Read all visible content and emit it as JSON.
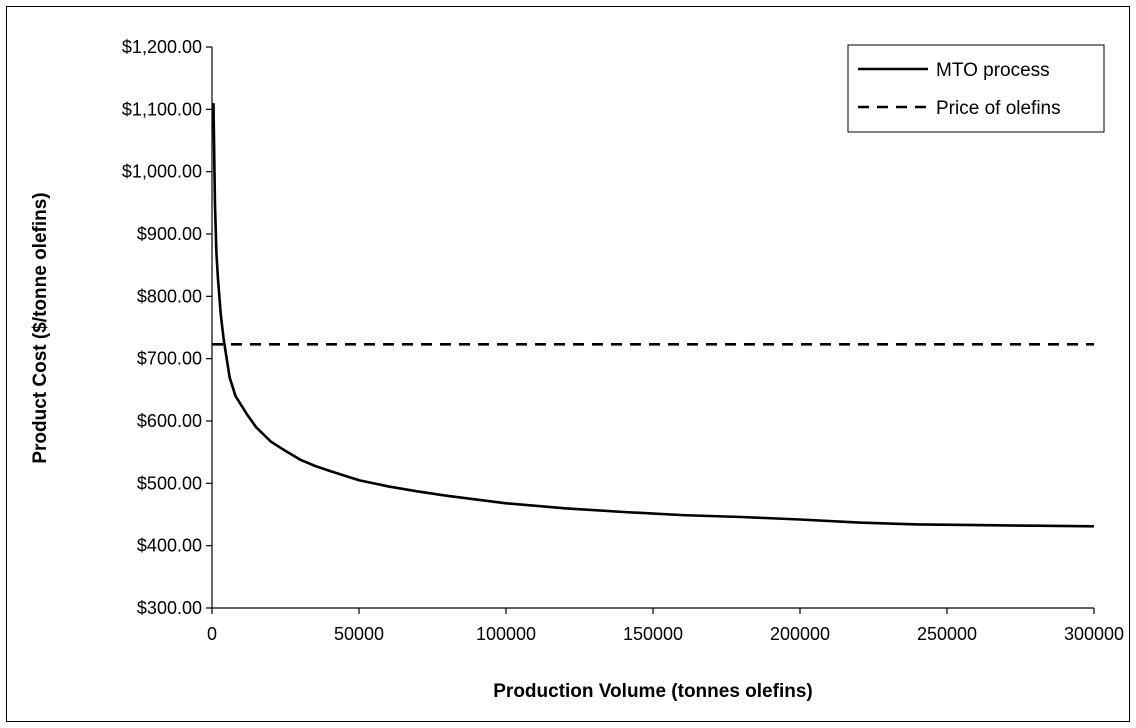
{
  "chart_data": {
    "type": "line",
    "title": "",
    "xlabel": "Production Volume (tonnes olefins)",
    "ylabel": "Product Cost ($/tonne olefins)",
    "xlim": [
      0,
      300000
    ],
    "ylim": [
      300,
      1200
    ],
    "x_ticks": [
      0,
      50000,
      100000,
      150000,
      200000,
      250000,
      300000
    ],
    "x_tick_labels": [
      "0",
      "50000",
      "100000",
      "150000",
      "200000",
      "250000",
      "300000"
    ],
    "y_ticks": [
      300,
      400,
      500,
      600,
      700,
      800,
      900,
      1000,
      1100,
      1200
    ],
    "y_tick_labels": [
      "$300.00",
      "$400.00",
      "$500.00",
      "$600.00",
      "$700.00",
      "$800.00",
      "$900.00",
      "$1,000.00",
      "$1,100.00",
      "$1,200.00"
    ],
    "grid": false,
    "legend_position": "top-right",
    "series": [
      {
        "name": "MTO process",
        "style": "solid",
        "color": "#000000",
        "x": [
          500,
          1000,
          1500,
          2000,
          2500,
          3000,
          4000,
          5000,
          6000,
          8000,
          10000,
          12000,
          15000,
          20000,
          25000,
          30000,
          35000,
          40000,
          50000,
          60000,
          70000,
          80000,
          90000,
          100000,
          120000,
          140000,
          160000,
          180000,
          200000,
          220000,
          240000,
          260000,
          280000,
          300000
        ],
        "y": [
          1110,
          950,
          870,
          830,
          800,
          770,
          730,
          700,
          670,
          640,
          625,
          610,
          590,
          567,
          552,
          538,
          528,
          520,
          505,
          495,
          487,
          480,
          474,
          468,
          460,
          454,
          449,
          446,
          442,
          437,
          434,
          433,
          432,
          431
        ]
      },
      {
        "name": "Price of olefins",
        "style": "dashed",
        "color": "#000000",
        "x": [
          0,
          300000
        ],
        "y": [
          723,
          723
        ]
      }
    ]
  }
}
